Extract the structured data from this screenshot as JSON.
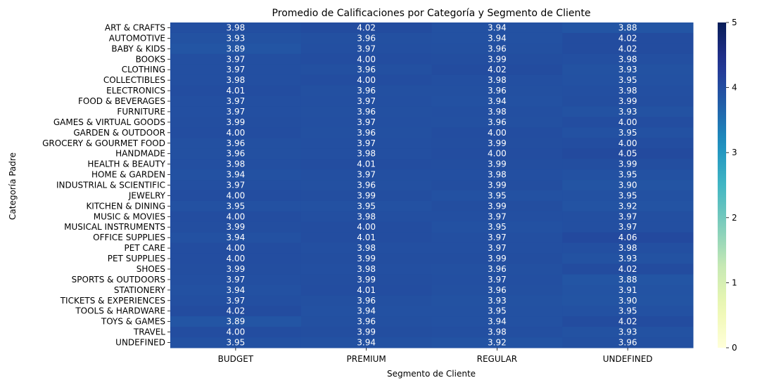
{
  "chart_data": {
    "type": "heatmap",
    "title": "Promedio de Calificaciones por Categoría y Segmento de Cliente",
    "xlabel": "Segmento de Cliente",
    "ylabel": "Categoría Padre",
    "columns": [
      "BUDGET",
      "PREMIUM",
      "REGULAR",
      "UNDEFINED"
    ],
    "rows": [
      "ART & CRAFTS",
      "AUTOMOTIVE",
      "BABY & KIDS",
      "BOOKS",
      "CLOTHING",
      "COLLECTIBLES",
      "ELECTRONICS",
      "FOOD & BEVERAGES",
      "FURNITURE",
      "GAMES & VIRTUAL GOODS",
      "GARDEN & OUTDOOR",
      "GROCERY & GOURMET FOOD",
      "HANDMADE",
      "HEALTH & BEAUTY",
      "HOME & GARDEN",
      "INDUSTRIAL & SCIENTIFIC",
      "JEWELRY",
      "KITCHEN & DINING",
      "MUSIC & MOVIES",
      "MUSICAL INSTRUMENTS",
      "OFFICE SUPPLIES",
      "PET CARE",
      "PET SUPPLIES",
      "SHOES",
      "SPORTS & OUTDOORS",
      "STATIONERY",
      "TICKETS & EXPERIENCES",
      "TOOLS & HARDWARE",
      "TOYS & GAMES",
      "TRAVEL",
      "UNDEFINED"
    ],
    "values": [
      [
        3.98,
        4.02,
        3.94,
        3.88
      ],
      [
        3.93,
        3.96,
        3.94,
        4.02
      ],
      [
        3.89,
        3.97,
        3.96,
        4.02
      ],
      [
        3.97,
        4.0,
        3.99,
        3.98
      ],
      [
        3.97,
        3.96,
        4.02,
        3.93
      ],
      [
        3.98,
        4.0,
        3.98,
        3.95
      ],
      [
        4.01,
        3.96,
        3.96,
        3.98
      ],
      [
        3.97,
        3.97,
        3.94,
        3.99
      ],
      [
        3.97,
        3.96,
        3.98,
        3.93
      ],
      [
        3.99,
        3.97,
        3.96,
        4.0
      ],
      [
        4.0,
        3.96,
        4.0,
        3.95
      ],
      [
        3.96,
        3.97,
        3.99,
        4.0
      ],
      [
        3.96,
        3.98,
        4.0,
        4.05
      ],
      [
        3.98,
        4.01,
        3.99,
        3.99
      ],
      [
        3.94,
        3.97,
        3.98,
        3.95
      ],
      [
        3.97,
        3.96,
        3.99,
        3.9
      ],
      [
        4.0,
        3.99,
        3.95,
        3.95
      ],
      [
        3.95,
        3.95,
        3.99,
        3.92
      ],
      [
        4.0,
        3.98,
        3.97,
        3.97
      ],
      [
        3.99,
        4.0,
        3.95,
        3.97
      ],
      [
        3.94,
        4.01,
        3.97,
        4.06
      ],
      [
        4.0,
        3.98,
        3.97,
        3.98
      ],
      [
        4.0,
        3.99,
        3.99,
        3.93
      ],
      [
        3.99,
        3.98,
        3.96,
        4.02
      ],
      [
        3.97,
        3.99,
        3.97,
        3.88
      ],
      [
        3.94,
        4.01,
        3.96,
        3.91
      ],
      [
        3.97,
        3.96,
        3.93,
        3.9
      ],
      [
        4.02,
        3.94,
        3.95,
        3.95
      ],
      [
        3.89,
        3.96,
        3.94,
        4.02
      ],
      [
        4.0,
        3.99,
        3.98,
        3.93
      ],
      [
        3.95,
        3.94,
        3.92,
        3.96
      ]
    ],
    "colorbar": {
      "min": 0,
      "max": 5,
      "ticks": [
        "0",
        "1",
        "2",
        "3",
        "4",
        "5"
      ],
      "colormap": "YlGnBu"
    }
  }
}
